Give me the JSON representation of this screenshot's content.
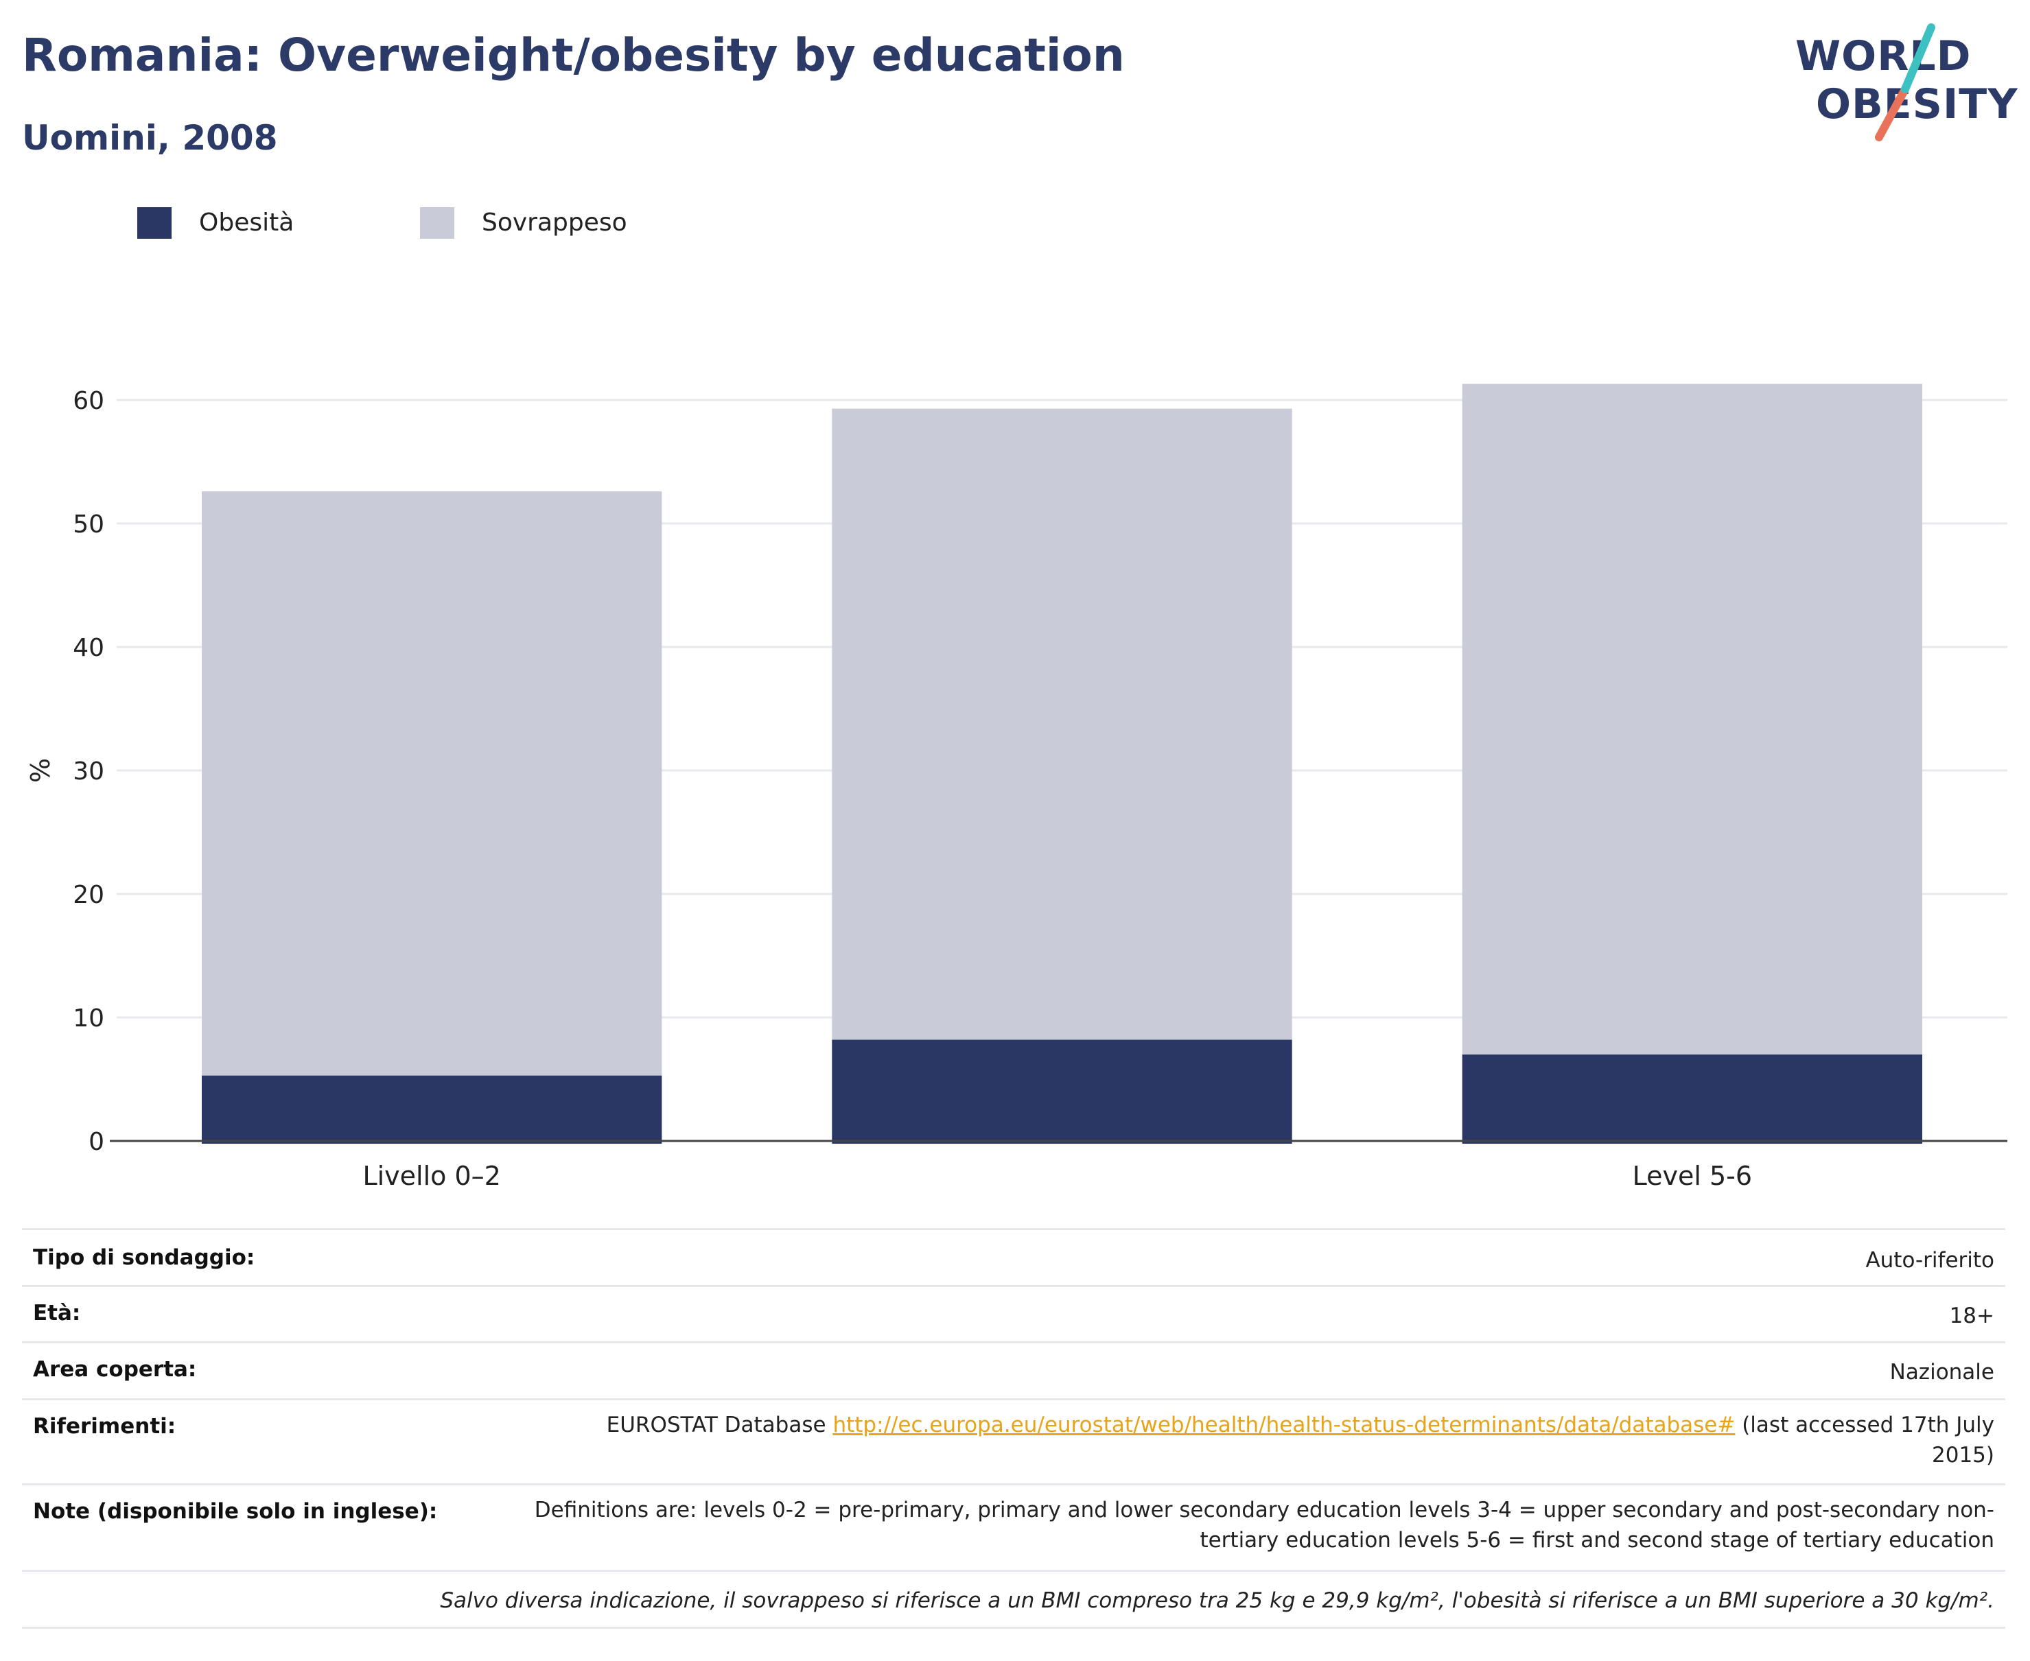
{
  "header": {
    "title": "Romania: Overweight/obesity by education",
    "subtitle": "Uomini, 2008",
    "logo_line1": "WORLD",
    "logo_line2": "OBESITY"
  },
  "legend": [
    {
      "label": "Obesità",
      "color": "#2a3663"
    },
    {
      "label": "Sovrappeso",
      "color": "#c9ccd8"
    }
  ],
  "colors": {
    "obesity": "#2a3663",
    "overweight": "#c9ccd8",
    "grid": "#e6e8ee",
    "axis": "#444444",
    "logo_teal": "#3cc0c0",
    "logo_coral": "#e8735a"
  },
  "chart_data": {
    "type": "bar",
    "stacked": true,
    "categories": [
      "Livello 0–2",
      "",
      "Level 5-6"
    ],
    "series": [
      {
        "name": "Obesità",
        "values": [
          5.3,
          8.2,
          7.0
        ]
      },
      {
        "name": "Sovrappeso",
        "values": [
          47.3,
          51.1,
          54.3
        ]
      }
    ],
    "totals": [
      52.6,
      59.3,
      61.3
    ],
    "ylabel": "%",
    "ylim": [
      0,
      65
    ],
    "yticks": [
      0,
      10,
      20,
      30,
      40,
      50,
      60
    ],
    "grid": true,
    "legend_position": "top-left"
  },
  "meta": {
    "survey_type_label": "Tipo di sondaggio:",
    "survey_type_value": "Auto-riferito",
    "age_label": "Età:",
    "age_value": "18+",
    "area_label": "Area coperta:",
    "area_value": "Nazionale",
    "references_label": "Riferimenti:",
    "references_prefix": "EUROSTAT Database ",
    "references_link": "http://ec.europa.eu/eurostat/web/health/health-status-determinants/data/database#",
    "references_suffix_1": " (last accessed 17th July",
    "references_suffix_2": "2015)",
    "notes_label": "Note (disponibile solo in inglese):",
    "notes_line_1": "Definitions are: levels 0-2 = pre-primary, primary and lower secondary education levels 3-4 = upper secondary and post-secondary non-",
    "notes_line_2": "tertiary education levels 5-6 = first and second stage of tertiary education",
    "footnote": "Salvo diversa indicazione, il sovrappeso si riferisce a un BMI compreso tra 25 kg e 29,9 kg/m², l'obesità si riferisce a un BMI superiore a 30 kg/m²."
  }
}
